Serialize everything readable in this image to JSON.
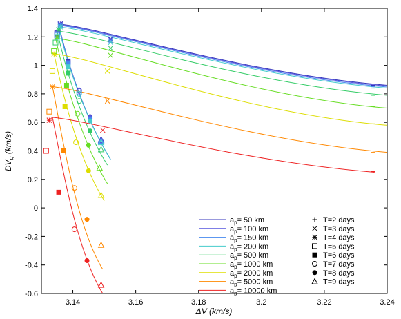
{
  "chart_data": {
    "type": "line",
    "xlabel": "ΔV (km/s)",
    "ylabel": "DV_g (km/s)",
    "xlim": [
      3.13,
      3.24
    ],
    "ylim": [
      -0.6,
      1.4
    ],
    "x_ticks": [
      3.14,
      3.16,
      3.18,
      3.2,
      3.22,
      3.24
    ],
    "x_tick_labels": [
      "3.14",
      "3.16",
      "3.18",
      "3.2",
      "3.22",
      "3.24"
    ],
    "y_ticks": [
      -0.6,
      -0.4,
      -0.2,
      0,
      0.2,
      0.4,
      0.6,
      0.8,
      1,
      1.2,
      1.4
    ],
    "y_tick_labels": [
      "-0.6",
      "-0.4",
      "-0.2",
      "0",
      "0.2",
      "0.4",
      "0.6",
      "0.8",
      "1",
      "1.2",
      "1.4"
    ],
    "grid": false,
    "legend_position": "bottom-right",
    "marker_legend": [
      {
        "label": "T=2 days",
        "marker": "plus"
      },
      {
        "label": "T=3 days",
        "marker": "cross"
      },
      {
        "label": "T=4 days",
        "marker": "asterisk"
      },
      {
        "label": "T=5 days",
        "marker": "open-square"
      },
      {
        "label": "T=6 days",
        "marker": "filled-square"
      },
      {
        "label": "T=7 days",
        "marker": "open-circle"
      },
      {
        "label": "T=8 days",
        "marker": "filled-circle"
      },
      {
        "label": "T=9 days",
        "marker": "open-triangle"
      }
    ],
    "series": [
      {
        "label_prefix": "a",
        "label_sub": "p",
        "label_suffix": "= 50 km",
        "color": "#3333bb",
        "tmin_point": [
          3.1355,
          1.29
        ],
        "fall_end": [
          3.152,
          0.34
        ],
        "rise_end": [
          3.24,
          0.86
        ],
        "markers": [
          [
            3.2355,
            0.86
          ],
          [
            3.152,
            1.185
          ],
          [
            3.136,
            1.29
          ],
          [
            3.135,
            1.225
          ],
          [
            3.1385,
            1.03
          ],
          [
            3.142,
            0.825
          ],
          [
            3.1455,
            0.64
          ],
          [
            3.149,
            0.48
          ]
        ]
      },
      {
        "label_prefix": "a",
        "label_sub": "p",
        "label_suffix": "= 100 km",
        "color": "#5555dd",
        "tmin_point": [
          3.1355,
          1.285
        ],
        "fall_end": [
          3.152,
          0.34
        ],
        "rise_end": [
          3.24,
          0.855
        ],
        "markers": [
          [
            3.2355,
            0.855
          ],
          [
            3.152,
            1.18
          ],
          [
            3.136,
            1.285
          ],
          [
            3.135,
            1.22
          ],
          [
            3.1385,
            1.02
          ],
          [
            3.142,
            0.82
          ],
          [
            3.1455,
            0.635
          ],
          [
            3.149,
            0.475
          ]
        ]
      },
      {
        "label_prefix": "a",
        "label_sub": "p",
        "label_suffix": "= 150 km",
        "color": "#4488ee",
        "tmin_point": [
          3.1355,
          1.28
        ],
        "fall_end": [
          3.152,
          0.34
        ],
        "rise_end": [
          3.24,
          0.848
        ],
        "markers": [
          [
            3.2355,
            0.85
          ],
          [
            3.152,
            1.17
          ],
          [
            3.136,
            1.28
          ],
          [
            3.135,
            1.21
          ],
          [
            3.1385,
            1.01
          ],
          [
            3.142,
            0.81
          ],
          [
            3.1455,
            0.625
          ],
          [
            3.149,
            0.47
          ]
        ]
      },
      {
        "label_prefix": "a",
        "label_sub": "p",
        "label_suffix": "= 200 km",
        "color": "#44cccc",
        "tmin_point": [
          3.1355,
          1.27
        ],
        "fall_end": [
          3.152,
          0.34
        ],
        "rise_end": [
          3.24,
          0.84
        ],
        "markers": [
          [
            3.2355,
            0.84
          ],
          [
            3.152,
            1.16
          ],
          [
            3.136,
            1.27
          ],
          [
            3.135,
            1.2
          ],
          [
            3.1385,
            0.99
          ],
          [
            3.142,
            0.8
          ],
          [
            3.1455,
            0.61
          ],
          [
            3.149,
            0.46
          ]
        ]
      },
      {
        "label_prefix": "a",
        "label_sub": "p",
        "label_suffix": "= 500 km",
        "color": "#33cc66",
        "tmin_point": [
          3.135,
          1.24
        ],
        "fall_end": [
          3.151,
          0.3
        ],
        "rise_end": [
          3.24,
          0.79
        ],
        "markers": [
          [
            3.2355,
            0.79
          ],
          [
            3.152,
            1.12
          ],
          [
            3.1355,
            1.25
          ],
          [
            3.1345,
            1.16
          ],
          [
            3.1385,
            0.945
          ],
          [
            3.142,
            0.75
          ],
          [
            3.1455,
            0.54
          ],
          [
            3.149,
            0.41
          ]
        ]
      },
      {
        "label_prefix": "a",
        "label_sub": "p",
        "label_suffix": "= 1000 km",
        "color": "#66dd22",
        "tmin_point": [
          3.1345,
          1.19
        ],
        "fall_end": [
          3.151,
          0.17
        ],
        "rise_end": [
          3.24,
          0.7
        ],
        "markers": [
          [
            3.2355,
            0.71
          ],
          [
            3.152,
            1.07
          ],
          [
            3.135,
            1.2
          ],
          [
            3.134,
            1.1
          ],
          [
            3.138,
            0.86
          ],
          [
            3.1415,
            0.66
          ],
          [
            3.145,
            0.44
          ],
          [
            3.1485,
            0.28
          ]
        ]
      },
      {
        "label_prefix": "a",
        "label_sub": "p",
        "label_suffix": "= 2000 km",
        "color": "#dddd00",
        "tmin_point": [
          3.134,
          1.08
        ],
        "fall_end": [
          3.15,
          0.05
        ],
        "rise_end": [
          3.24,
          0.58
        ],
        "markers": [
          [
            3.2355,
            0.59
          ],
          [
            3.151,
            0.96
          ],
          [
            3.134,
            1.08
          ],
          [
            3.1335,
            0.96
          ],
          [
            3.1375,
            0.71
          ],
          [
            3.141,
            0.46
          ],
          [
            3.145,
            0.26
          ],
          [
            3.149,
            0.09
          ]
        ]
      },
      {
        "label_prefix": "a",
        "label_sub": "p",
        "label_suffix": "= 5000 km",
        "color": "#ff8800",
        "tmin_point": [
          3.1335,
          0.85
        ],
        "fall_end": [
          3.1495,
          -0.43
        ],
        "rise_end": [
          3.24,
          0.39
        ],
        "markers": [
          [
            3.2355,
            0.39
          ],
          [
            3.151,
            0.75
          ],
          [
            3.1335,
            0.85
          ],
          [
            3.1325,
            0.675
          ],
          [
            3.137,
            0.4
          ],
          [
            3.1405,
            0.14
          ],
          [
            3.1445,
            -0.08
          ],
          [
            3.149,
            -0.26
          ]
        ]
      },
      {
        "label_prefix": "a",
        "label_sub": "p",
        "label_suffix": "= 10000 km",
        "color": "#ee2222",
        "tmin_point": [
          3.1335,
          0.635
        ],
        "fall_end": [
          3.1495,
          -0.6
        ],
        "rise_end": [
          3.236,
          0.25
        ],
        "markers": [
          [
            3.2355,
            0.255
          ],
          [
            3.1495,
            0.545
          ],
          [
            3.1325,
            0.615
          ],
          [
            3.1315,
            0.4
          ],
          [
            3.1355,
            0.11
          ],
          [
            3.1405,
            -0.15
          ],
          [
            3.1445,
            -0.37
          ],
          [
            3.149,
            -0.54
          ]
        ]
      }
    ]
  }
}
